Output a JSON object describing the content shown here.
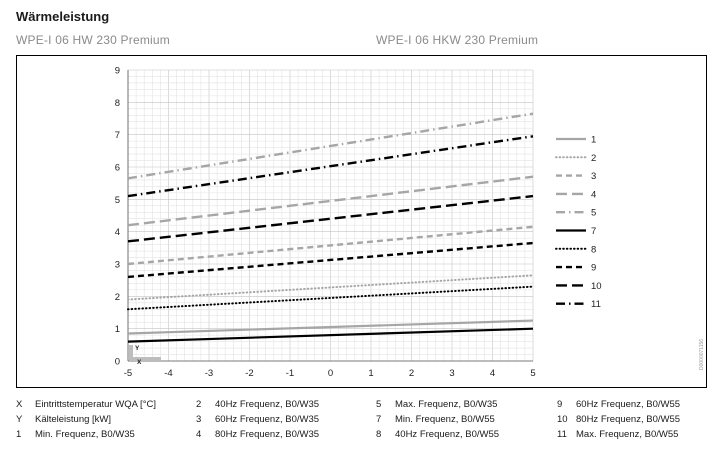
{
  "page": {
    "title": "Wärmeleistung",
    "subtitle_left": "WPE-I 06 HW 230 Premium",
    "subtitle_right": "WPE-I 06 HKW 230 Premium",
    "watermark": "D0000071156"
  },
  "footnote": {
    "columns": [
      [
        {
          "key": "X",
          "text": "Eintrittstemperatur WQA [°C]"
        },
        {
          "key": "Y",
          "text": "Kälteleistung [kW]"
        },
        {
          "key": "1",
          "text": "Min. Frequenz, B0/W35"
        }
      ],
      [
        {
          "key": "2",
          "text": "40Hz Frequenz, B0/W35"
        },
        {
          "key": "3",
          "text": "60Hz Frequenz, B0/W35"
        },
        {
          "key": "4",
          "text": "80Hz Frequenz, B0/W35"
        }
      ],
      [
        {
          "key": "5",
          "text": "Max. Frequenz, B0/W35"
        },
        {
          "key": "7",
          "text": "Min. Frequenz, B0/W55"
        },
        {
          "key": "8",
          "text": "40Hz Frequenz, B0/W55"
        }
      ],
      [
        {
          "key": "9",
          "text": "60Hz Frequenz, B0/W55"
        },
        {
          "key": "10",
          "text": "80Hz Frequenz, B0/W55"
        },
        {
          "key": "11",
          "text": "Max. Frequenz, B0/W55"
        }
      ]
    ]
  },
  "chart_data": {
    "type": "line",
    "xlim": [
      -5,
      5
    ],
    "ylim": [
      0,
      9
    ],
    "x_ticks": [
      -5,
      -4,
      -3,
      -2,
      -1,
      0,
      1,
      2,
      3,
      4,
      5
    ],
    "y_ticks": [
      0,
      1,
      2,
      3,
      4,
      5,
      6,
      7,
      8,
      9
    ],
    "xlabel": "X",
    "ylabel": "Y",
    "grid": true,
    "legend_position": "right",
    "series": [
      {
        "name": "1",
        "x": [
          -5,
          5
        ],
        "y": [
          0.85,
          1.25
        ],
        "color": "#a6a6a6",
        "style": "solid"
      },
      {
        "name": "2",
        "x": [
          -5,
          5
        ],
        "y": [
          1.9,
          2.65
        ],
        "color": "#a6a6a6",
        "style": "dotted"
      },
      {
        "name": "3",
        "x": [
          -5,
          5
        ],
        "y": [
          3.0,
          4.15
        ],
        "color": "#a6a6a6",
        "style": "short-dash"
      },
      {
        "name": "4",
        "x": [
          -5,
          5
        ],
        "y": [
          4.2,
          5.7
        ],
        "color": "#a6a6a6",
        "style": "long-dash"
      },
      {
        "name": "5",
        "x": [
          -5,
          5
        ],
        "y": [
          5.65,
          7.65
        ],
        "color": "#a6a6a6",
        "style": "dash-dot"
      },
      {
        "name": "7",
        "x": [
          -5,
          5
        ],
        "y": [
          0.6,
          1.0
        ],
        "color": "#000000",
        "style": "solid"
      },
      {
        "name": "8",
        "x": [
          -5,
          5
        ],
        "y": [
          1.6,
          2.3
        ],
        "color": "#000000",
        "style": "dotted"
      },
      {
        "name": "9",
        "x": [
          -5,
          5
        ],
        "y": [
          2.6,
          3.65
        ],
        "color": "#000000",
        "style": "short-dash"
      },
      {
        "name": "10",
        "x": [
          -5,
          5
        ],
        "y": [
          3.7,
          5.1
        ],
        "color": "#000000",
        "style": "long-dash"
      },
      {
        "name": "11",
        "x": [
          -5,
          5
        ],
        "y": [
          5.1,
          6.95
        ],
        "color": "#000000",
        "style": "dash-dot"
      }
    ]
  }
}
